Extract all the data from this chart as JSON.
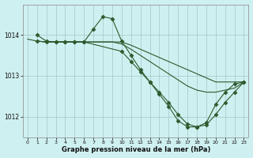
{
  "title": "Graphe pression niveau de la mer (hPa)",
  "bg_color": "#cff0f0",
  "line_color": "#2d5a2d",
  "grid_color": "#a0c8c8",
  "xlim": [
    -0.5,
    23.5
  ],
  "ylim": [
    1011.5,
    1014.75
  ],
  "yticks": [
    1012,
    1013,
    1014
  ],
  "xticks": [
    0,
    1,
    2,
    3,
    4,
    5,
    6,
    7,
    8,
    9,
    10,
    11,
    12,
    13,
    14,
    15,
    16,
    17,
    18,
    19,
    20,
    21,
    22,
    23
  ],
  "series": [
    {
      "x": [
        0,
        1,
        2,
        3,
        4,
        5,
        6,
        7,
        8,
        9,
        10,
        11,
        12,
        13,
        14,
        15,
        16,
        17,
        18,
        19,
        20,
        21,
        22,
        23
      ],
      "y": [
        1013.9,
        1013.85,
        1013.83,
        1013.83,
        1013.83,
        1013.83,
        1013.83,
        1013.83,
        1013.83,
        1013.83,
        1013.83,
        1013.75,
        1013.65,
        1013.55,
        1013.45,
        1013.35,
        1013.25,
        1013.15,
        1013.05,
        1012.95,
        1012.85,
        1012.85,
        1012.85,
        1012.85
      ],
      "marker": false
    },
    {
      "x": [
        1,
        2,
        3,
        4,
        5,
        6,
        7,
        8,
        9,
        10,
        11,
        12,
        13,
        14,
        15,
        16,
        17,
        18,
        19,
        20,
        21,
        22,
        23
      ],
      "y": [
        1014.0,
        1013.85,
        1013.83,
        1013.83,
        1013.83,
        1013.83,
        1014.15,
        1014.45,
        1014.4,
        1013.85,
        1013.5,
        1013.15,
        1012.85,
        1012.55,
        1012.25,
        1011.9,
        1011.75,
        1011.75,
        1011.85,
        1012.3,
        1012.6,
        1012.8,
        1012.85
      ],
      "marker": true
    },
    {
      "x": [
        1,
        2,
        3,
        4,
        5,
        6,
        7,
        8,
        9,
        10,
        11,
        12,
        13,
        14,
        15,
        16,
        17,
        18,
        19,
        20,
        21,
        22,
        23
      ],
      "y": [
        1013.85,
        1013.83,
        1013.83,
        1013.83,
        1013.83,
        1013.83,
        1013.83,
        1013.83,
        1013.83,
        1013.78,
        1013.65,
        1013.5,
        1013.35,
        1013.2,
        1013.05,
        1012.9,
        1012.75,
        1012.65,
        1012.6,
        1012.6,
        1012.65,
        1012.7,
        1012.85
      ],
      "marker": false
    },
    {
      "x": [
        1,
        2,
        3,
        4,
        5,
        6,
        10,
        11,
        12,
        13,
        14,
        15,
        16,
        17,
        18,
        19,
        20,
        21,
        22,
        23
      ],
      "y": [
        1013.85,
        1013.83,
        1013.83,
        1013.83,
        1013.83,
        1013.83,
        1013.6,
        1013.35,
        1013.1,
        1012.85,
        1012.6,
        1012.35,
        1012.05,
        1011.82,
        1011.75,
        1011.8,
        1012.05,
        1012.35,
        1012.6,
        1012.85
      ],
      "marker": true
    }
  ]
}
